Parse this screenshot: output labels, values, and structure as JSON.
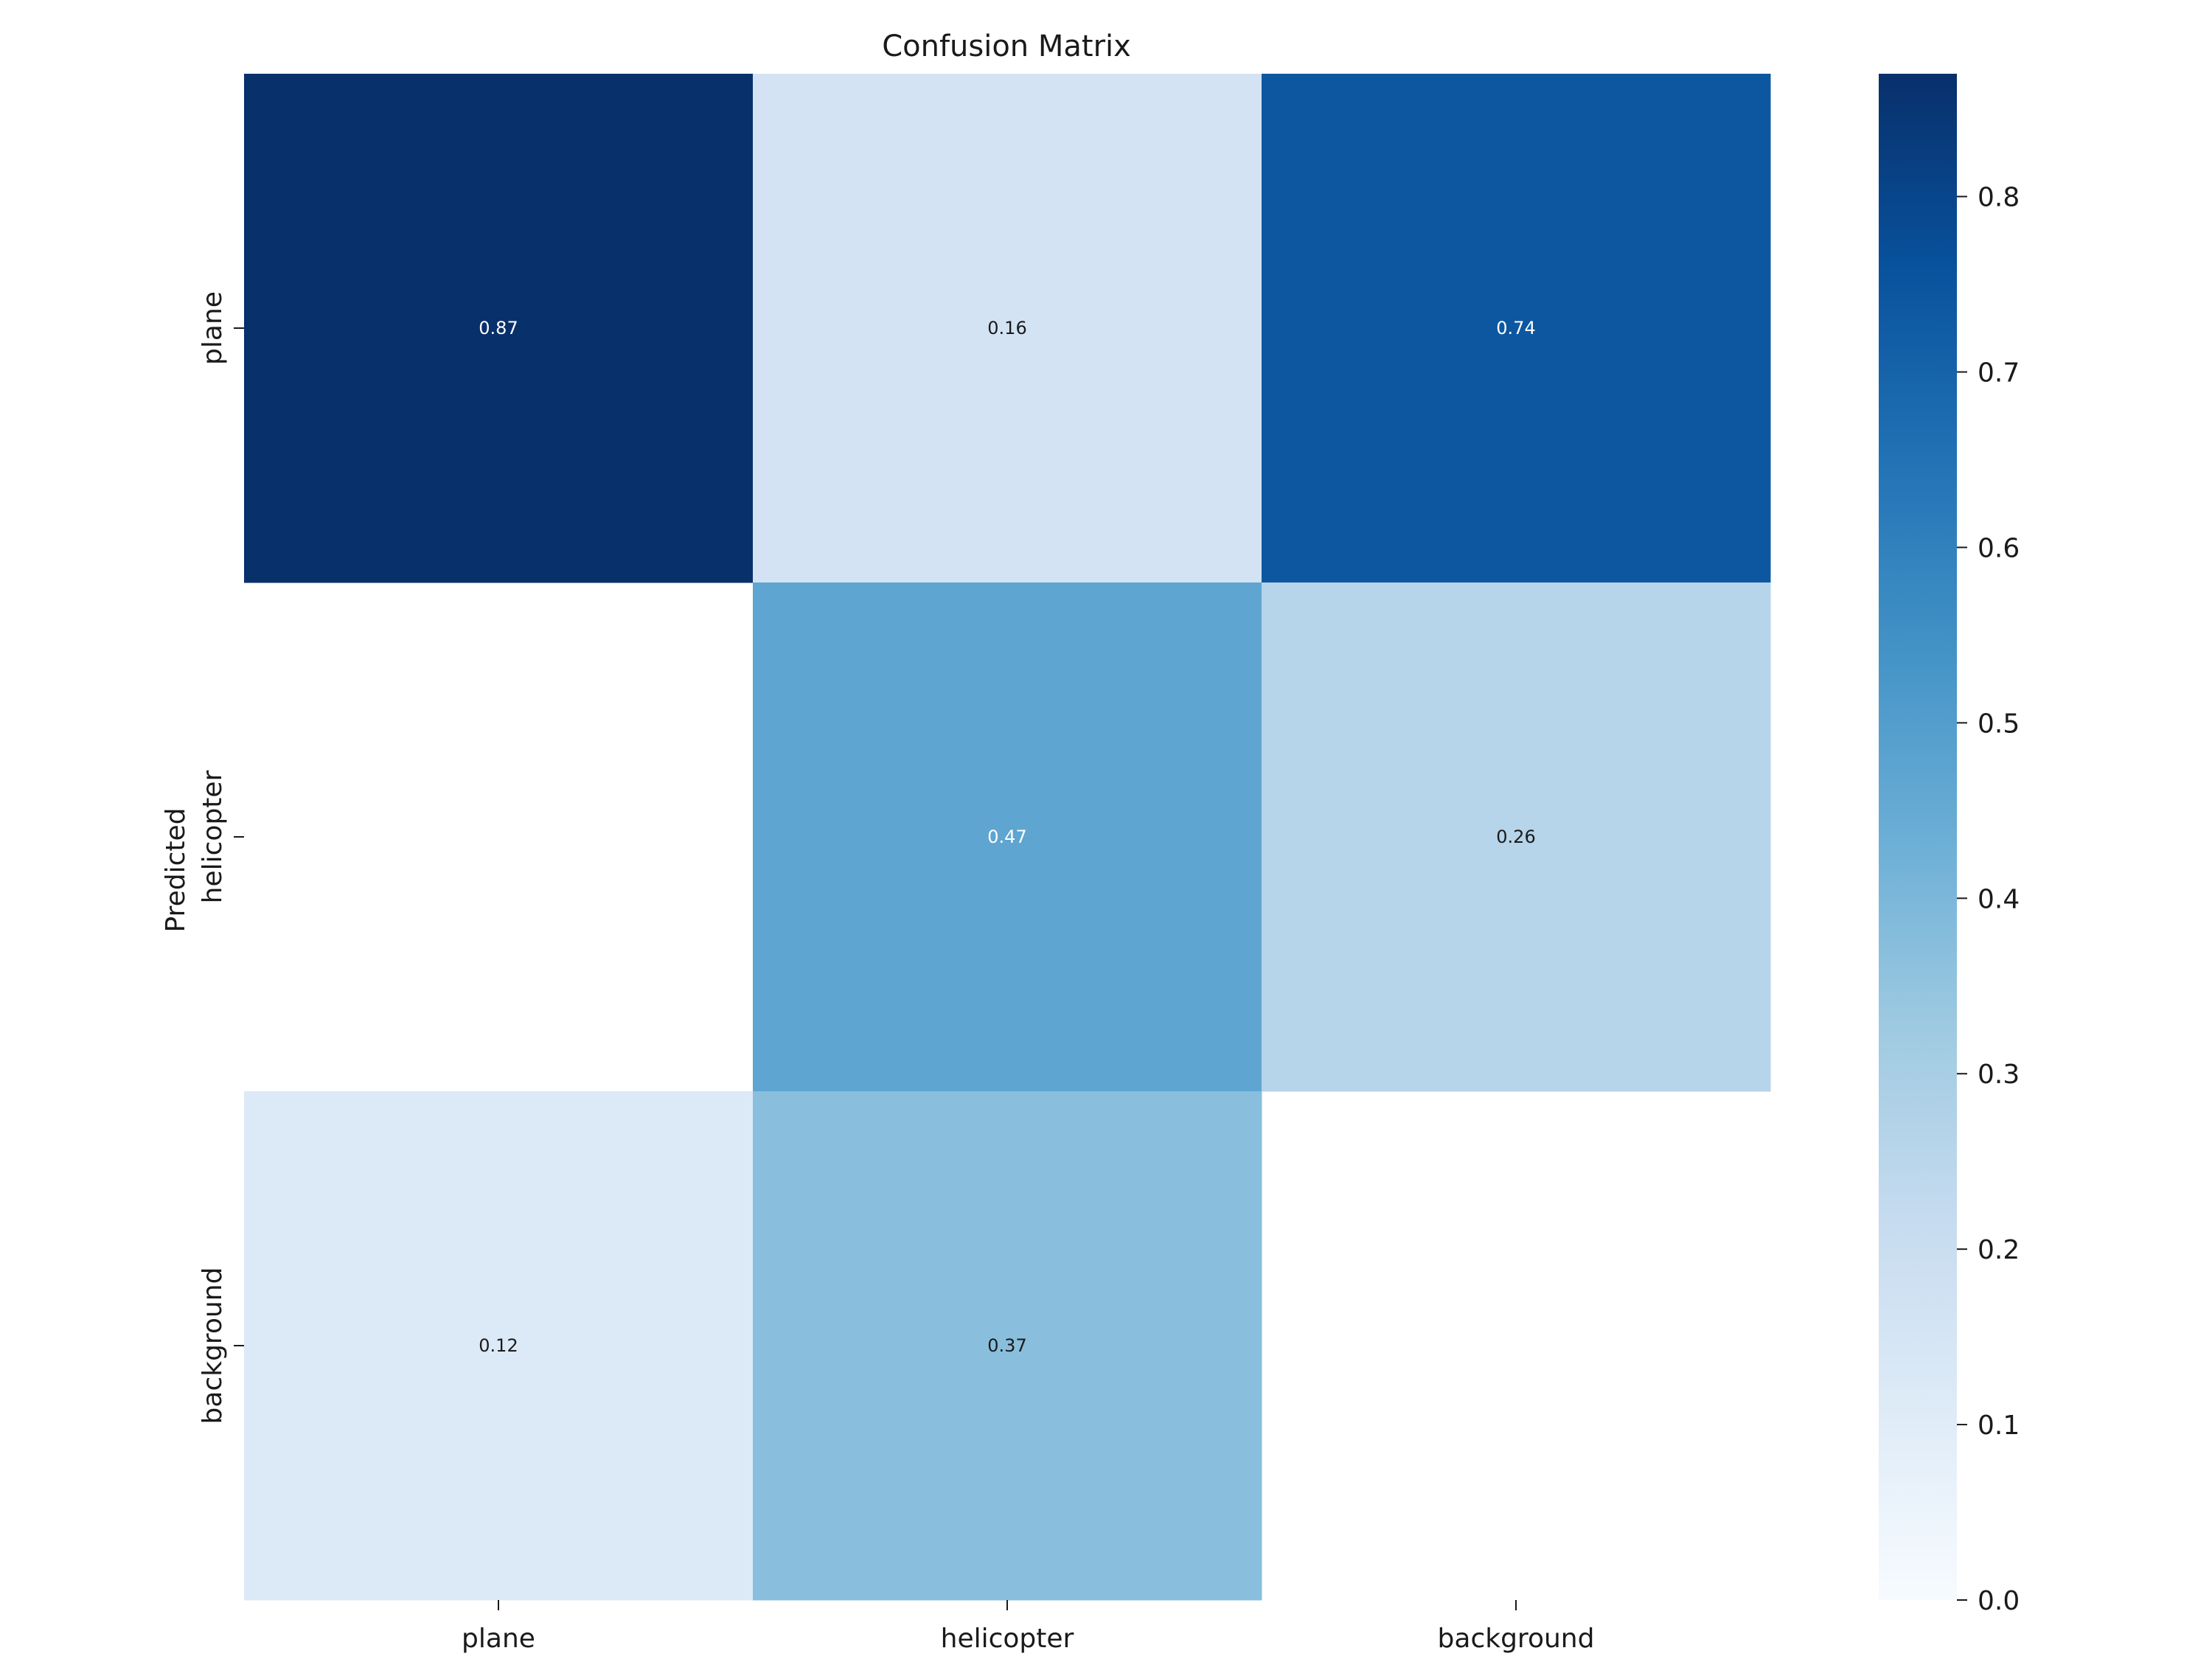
{
  "chart_data": {
    "type": "heatmap",
    "title": "Confusion Matrix",
    "xlabel": "",
    "ylabel": "Predicted",
    "x_categories": [
      "plane",
      "helicopter",
      "background"
    ],
    "y_categories": [
      "plane",
      "helicopter",
      "background"
    ],
    "values": [
      [
        0.87,
        0.16,
        0.74
      ],
      [
        null,
        0.47,
        0.26
      ],
      [
        0.12,
        0.37,
        null
      ]
    ],
    "cell_labels": [
      [
        "0.87",
        "0.16",
        "0.74"
      ],
      [
        "",
        "0.47",
        "0.26"
      ],
      [
        "0.12",
        "0.37",
        ""
      ]
    ],
    "colormap": "Blues",
    "colorbar": {
      "range": [
        0,
        0.87
      ],
      "ticks": [
        0.0,
        0.1,
        0.2,
        0.3,
        0.4,
        0.5,
        0.6,
        0.7,
        0.8
      ],
      "tick_labels": [
        "0.0",
        "0.1",
        "0.2",
        "0.3",
        "0.4",
        "0.5",
        "0.6",
        "0.7",
        "0.8"
      ]
    },
    "grid": false
  }
}
